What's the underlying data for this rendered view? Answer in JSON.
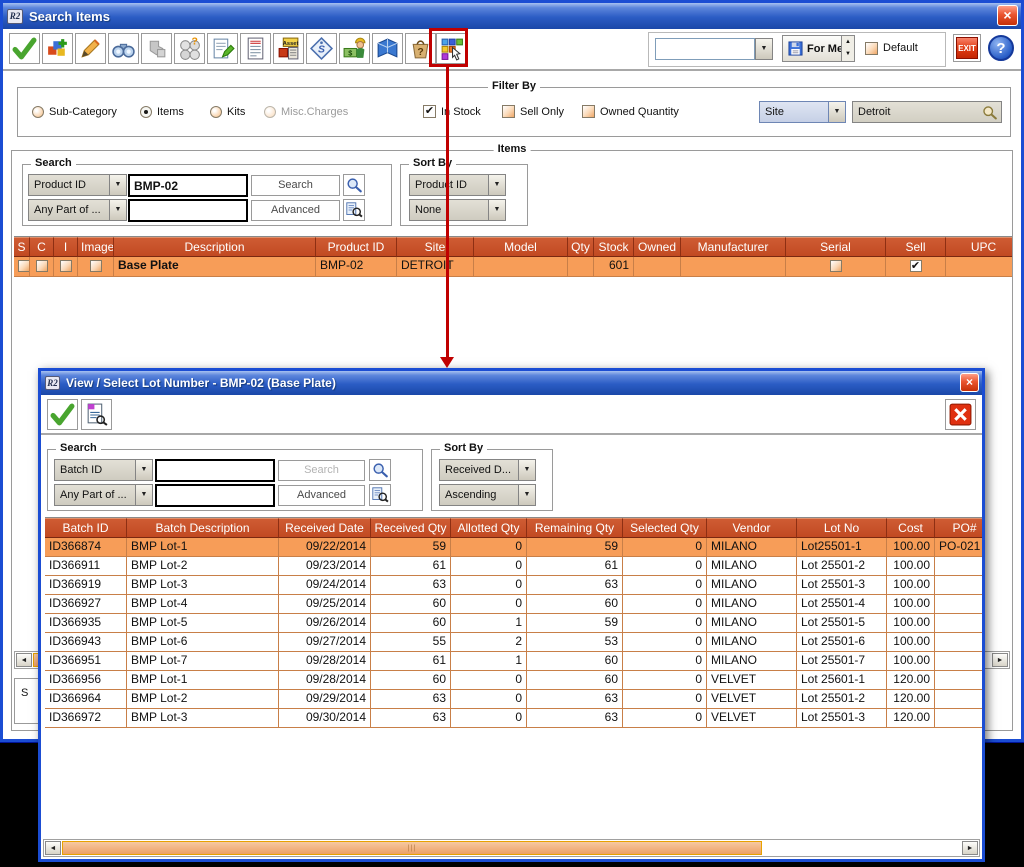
{
  "colors": {
    "table_header_bg": "#c34e27",
    "row_highlight": "#f79d58",
    "titlebar_top": "#a7c1f0",
    "titlebar_bottom": "#1a47a8",
    "scrollbar_thumb": "#eda066",
    "annotation": "#c00000"
  },
  "main_window": {
    "title": "Search Items",
    "window_icon": "R2",
    "toolbar": {
      "preset_value": "",
      "for_me_label": "For Me",
      "default_label": "Default",
      "exit_label": "EXIT",
      "help_label": "?"
    },
    "filter": {
      "legend": "Filter By",
      "radios": [
        {
          "label": "Sub-Category",
          "selected": false,
          "disabled": false
        },
        {
          "label": "Items",
          "selected": true,
          "disabled": false
        },
        {
          "label": "Kits",
          "selected": false,
          "disabled": false
        },
        {
          "label": "Misc.Charges",
          "selected": false,
          "disabled": true
        }
      ],
      "checkboxes": [
        {
          "label": "In Stock",
          "checked": true
        },
        {
          "label": "Sell Only",
          "checked": false
        },
        {
          "label": "Owned Quantity",
          "checked": false
        }
      ],
      "site_dropdown_value": "Site",
      "site_search_value": "Detroit"
    },
    "items": {
      "legend": "Items",
      "search": {
        "legend": "Search",
        "field_dropdown": "Product ID",
        "field_value": "BMP-02",
        "search_button": "Search",
        "any_part_dropdown": "Any Part of ...",
        "any_part_value": "",
        "advanced_button": "Advanced"
      },
      "sort_by": {
        "legend": "Sort By",
        "primary": "Product ID",
        "secondary": "None"
      },
      "table": {
        "columns": [
          "S",
          "C",
          "I",
          "Image",
          "Description",
          "Product ID",
          "Site",
          "Model",
          "Qty",
          "Stock",
          "Owned",
          "Manufacturer",
          "Serial",
          "Sell",
          "UPC"
        ],
        "row": {
          "s_checked": false,
          "c_checked": false,
          "i_checked": false,
          "image_checked": false,
          "description": "Base Plate",
          "product_id": "BMP-02",
          "site": "DETROIT",
          "model": "",
          "qty": "",
          "stock": "601",
          "owned": "",
          "manufacturer": "",
          "serial_checked": false,
          "sell_checked": true,
          "upc": ""
        }
      },
      "partial_text": "S"
    }
  },
  "dialog": {
    "title": "View / Select Lot Number - BMP-02 (Base Plate)",
    "window_icon": "R2",
    "search": {
      "legend": "Search",
      "field_dropdown": "Batch ID",
      "field_value": "",
      "search_button": "Search",
      "search_disabled": true,
      "any_part_dropdown": "Any Part of ...",
      "any_part_value": "",
      "advanced_button": "Advanced"
    },
    "sort_by": {
      "legend": "Sort By",
      "primary": "Received D...",
      "secondary": "Ascending"
    },
    "table": {
      "columns": [
        "Batch ID",
        "Batch Description",
        "Received Date",
        "Received Qty",
        "Allotted Qty",
        "Remaining Qty",
        "Selected Qty",
        "Vendor",
        "Lot No",
        "Cost",
        "PO#"
      ],
      "selected_row_index": 0,
      "rows": [
        [
          "ID366874",
          "BMP Lot-1",
          "09/22/2014",
          "59",
          "0",
          "59",
          "0",
          "MILANO",
          "Lot25501-1",
          "100.00",
          "PO-021"
        ],
        [
          "ID366911",
          "BMP Lot-2",
          "09/23/2014",
          "61",
          "0",
          "61",
          "0",
          "MILANO",
          "Lot 25501-2",
          "100.00",
          ""
        ],
        [
          "ID366919",
          "BMP Lot-3",
          "09/24/2014",
          "63",
          "0",
          "63",
          "0",
          "MILANO",
          "Lot 25501-3",
          "100.00",
          ""
        ],
        [
          "ID366927",
          "BMP Lot-4",
          "09/25/2014",
          "60",
          "0",
          "60",
          "0",
          "MILANO",
          "Lot 25501-4",
          "100.00",
          ""
        ],
        [
          "ID366935",
          "BMP Lot-5",
          "09/26/2014",
          "60",
          "1",
          "59",
          "0",
          "MILANO",
          "Lot 25501-5",
          "100.00",
          ""
        ],
        [
          "ID366943",
          "BMP Lot-6",
          "09/27/2014",
          "55",
          "2",
          "53",
          "0",
          "MILANO",
          "Lot 25501-6",
          "100.00",
          ""
        ],
        [
          "ID366951",
          "BMP Lot-7",
          "09/28/2014",
          "61",
          "1",
          "60",
          "0",
          "MILANO",
          "Lot 25501-7",
          "100.00",
          ""
        ],
        [
          "ID366956",
          "BMP Lot-1",
          "09/28/2014",
          "60",
          "0",
          "60",
          "0",
          "VELVET",
          "Lot 25601-1",
          "120.00",
          ""
        ],
        [
          "ID366964",
          "BMP Lot-2",
          "09/29/2014",
          "63",
          "0",
          "63",
          "0",
          "VELVET",
          "Lot 25501-2",
          "120.00",
          ""
        ],
        [
          "ID366972",
          "BMP Lot-3",
          "09/30/2014",
          "63",
          "0",
          "63",
          "0",
          "VELVET",
          "Lot 25501-3",
          "120.00",
          ""
        ]
      ]
    }
  },
  "annotation": {
    "color": "#c00000",
    "type": "highlight-box-and-arrow"
  }
}
